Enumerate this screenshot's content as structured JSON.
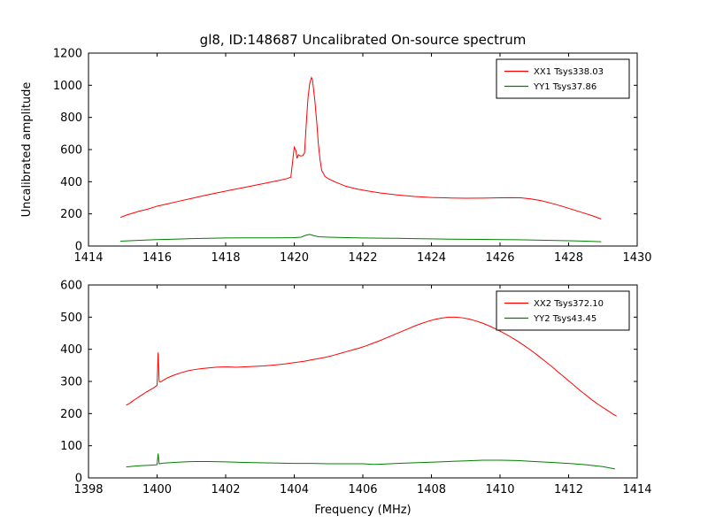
{
  "figure": {
    "background": "#ffffff",
    "frame_color": "#000000"
  },
  "chart_data": [
    {
      "type": "line",
      "title": "gl8, ID:148687 Uncalibrated On-source spectrum",
      "xlabel": "",
      "ylabel": "Uncalibrated amplitude",
      "xlim": [
        1414,
        1430
      ],
      "ylim": [
        0,
        1200
      ],
      "xticks": [
        1414,
        1416,
        1418,
        1420,
        1422,
        1424,
        1426,
        1428,
        1430
      ],
      "yticks": [
        0,
        200,
        400,
        600,
        800,
        1000,
        1200
      ],
      "grid": false,
      "legend_position": "upper right",
      "series": [
        {
          "name": "XX1 Tsys338.03",
          "color": "#ff0000",
          "points": [
            [
              1414.93,
              178
            ],
            [
              1415.1,
              192
            ],
            [
              1415.3,
              205
            ],
            [
              1415.5,
              218
            ],
            [
              1415.7,
              228
            ],
            [
              1416.0,
              248
            ],
            [
              1416.3,
              262
            ],
            [
              1416.6,
              277
            ],
            [
              1417.0,
              296
            ],
            [
              1417.4,
              315
            ],
            [
              1417.8,
              333
            ],
            [
              1418.2,
              350
            ],
            [
              1418.6,
              367
            ],
            [
              1419.0,
              384
            ],
            [
              1419.3,
              397
            ],
            [
              1419.6,
              410
            ],
            [
              1419.8,
              420
            ],
            [
              1419.85,
              425
            ],
            [
              1419.9,
              428
            ],
            [
              1419.95,
              520
            ],
            [
              1420.0,
              615
            ],
            [
              1420.05,
              592
            ],
            [
              1420.08,
              545
            ],
            [
              1420.12,
              568
            ],
            [
              1420.18,
              560
            ],
            [
              1420.25,
              562
            ],
            [
              1420.3,
              580
            ],
            [
              1420.35,
              760
            ],
            [
              1420.4,
              920
            ],
            [
              1420.45,
              1010
            ],
            [
              1420.5,
              1048
            ],
            [
              1420.53,
              1035
            ],
            [
              1420.56,
              980
            ],
            [
              1420.6,
              905
            ],
            [
              1420.63,
              830
            ],
            [
              1420.66,
              760
            ],
            [
              1420.7,
              640
            ],
            [
              1420.75,
              540
            ],
            [
              1420.8,
              470
            ],
            [
              1420.9,
              432
            ],
            [
              1421.0,
              418
            ],
            [
              1421.2,
              398
            ],
            [
              1421.5,
              372
            ],
            [
              1421.8,
              356
            ],
            [
              1422.1,
              344
            ],
            [
              1422.5,
              330
            ],
            [
              1423.0,
              318
            ],
            [
              1423.5,
              308
            ],
            [
              1424.0,
              302
            ],
            [
              1424.5,
              299
            ],
            [
              1425.0,
              297
            ],
            [
              1425.5,
              298
            ],
            [
              1426.0,
              300
            ],
            [
              1426.3,
              301
            ],
            [
              1426.6,
              300
            ],
            [
              1426.9,
              293
            ],
            [
              1427.2,
              282
            ],
            [
              1427.5,
              266
            ],
            [
              1427.8,
              248
            ],
            [
              1428.1,
              228
            ],
            [
              1428.4,
              208
            ],
            [
              1428.7,
              188
            ],
            [
              1428.95,
              168
            ]
          ]
        },
        {
          "name": "YY1 Tsys37.86",
          "color": "#008000",
          "points": [
            [
              1414.93,
              30
            ],
            [
              1415.5,
              36
            ],
            [
              1416.0,
              40
            ],
            [
              1416.5,
              43
            ],
            [
              1417.0,
              46
            ],
            [
              1417.5,
              48
            ],
            [
              1418.0,
              50
            ],
            [
              1418.5,
              51
            ],
            [
              1419.0,
              51
            ],
            [
              1419.5,
              51
            ],
            [
              1420.0,
              52
            ],
            [
              1420.2,
              55
            ],
            [
              1420.35,
              68
            ],
            [
              1420.45,
              72
            ],
            [
              1420.55,
              66
            ],
            [
              1420.7,
              58
            ],
            [
              1421.0,
              55
            ],
            [
              1421.5,
              52
            ],
            [
              1422.0,
              50
            ],
            [
              1422.5,
              49
            ],
            [
              1423.0,
              48
            ],
            [
              1423.5,
              46
            ],
            [
              1424.0,
              45
            ],
            [
              1424.5,
              43
            ],
            [
              1425.0,
              42
            ],
            [
              1425.5,
              41
            ],
            [
              1426.0,
              40
            ],
            [
              1426.5,
              39
            ],
            [
              1427.0,
              37
            ],
            [
              1427.5,
              35
            ],
            [
              1428.0,
              33
            ],
            [
              1428.5,
              30
            ],
            [
              1428.95,
              27
            ]
          ]
        }
      ]
    },
    {
      "type": "line",
      "title": "",
      "xlabel": "Frequency (MHz)",
      "ylabel": "",
      "xlim": [
        1398,
        1414
      ],
      "ylim": [
        0,
        600
      ],
      "xticks": [
        1398,
        1400,
        1402,
        1404,
        1406,
        1408,
        1410,
        1412,
        1414
      ],
      "yticks": [
        0,
        100,
        200,
        300,
        400,
        500,
        600
      ],
      "grid": false,
      "legend_position": "upper right",
      "series": [
        {
          "name": "XX2 Tsys372.10",
          "color": "#ff0000",
          "points": [
            [
              1399.1,
              226
            ],
            [
              1399.2,
              232
            ],
            [
              1399.3,
              240
            ],
            [
              1399.4,
              247
            ],
            [
              1399.5,
              254
            ],
            [
              1399.6,
              261
            ],
            [
              1399.7,
              268
            ],
            [
              1399.8,
              274
            ],
            [
              1399.9,
              280
            ],
            [
              1399.95,
              284
            ],
            [
              1400.0,
              288
            ],
            [
              1400.03,
              390
            ],
            [
              1400.06,
              300
            ],
            [
              1400.1,
              298
            ],
            [
              1400.2,
              305
            ],
            [
              1400.3,
              311
            ],
            [
              1400.5,
              320
            ],
            [
              1400.7,
              327
            ],
            [
              1400.9,
              333
            ],
            [
              1401.1,
              337
            ],
            [
              1401.3,
              340
            ],
            [
              1401.5,
              342
            ],
            [
              1401.7,
              344
            ],
            [
              1401.9,
              345
            ],
            [
              1402.1,
              345
            ],
            [
              1402.3,
              344
            ],
            [
              1402.5,
              345
            ],
            [
              1402.7,
              346
            ],
            [
              1402.9,
              347
            ],
            [
              1403.1,
              348
            ],
            [
              1403.3,
              350
            ],
            [
              1403.5,
              352
            ],
            [
              1403.7,
              354
            ],
            [
              1403.9,
              357
            ],
            [
              1404.1,
              360
            ],
            [
              1404.3,
              363
            ],
            [
              1404.5,
              367
            ],
            [
              1404.7,
              371
            ],
            [
              1404.9,
              375
            ],
            [
              1405.1,
              380
            ],
            [
              1405.3,
              386
            ],
            [
              1405.5,
              392
            ],
            [
              1405.7,
              398
            ],
            [
              1405.9,
              404
            ],
            [
              1406.1,
              411
            ],
            [
              1406.3,
              419
            ],
            [
              1406.5,
              427
            ],
            [
              1406.7,
              436
            ],
            [
              1406.9,
              445
            ],
            [
              1407.1,
              454
            ],
            [
              1407.3,
              463
            ],
            [
              1407.5,
              472
            ],
            [
              1407.7,
              480
            ],
            [
              1407.9,
              487
            ],
            [
              1408.1,
              493
            ],
            [
              1408.3,
              497
            ],
            [
              1408.5,
              500
            ],
            [
              1408.7,
              500
            ],
            [
              1408.9,
              498
            ],
            [
              1409.1,
              494
            ],
            [
              1409.3,
              488
            ],
            [
              1409.5,
              481
            ],
            [
              1409.7,
              472
            ],
            [
              1409.9,
              462
            ],
            [
              1410.1,
              451
            ],
            [
              1410.3,
              439
            ],
            [
              1410.5,
              426
            ],
            [
              1410.7,
              412
            ],
            [
              1410.9,
              397
            ],
            [
              1411.1,
              381
            ],
            [
              1411.3,
              364
            ],
            [
              1411.5,
              347
            ],
            [
              1411.7,
              329
            ],
            [
              1411.9,
              311
            ],
            [
              1412.1,
              293
            ],
            [
              1412.3,
              275
            ],
            [
              1412.5,
              258
            ],
            [
              1412.7,
              241
            ],
            [
              1412.9,
              226
            ],
            [
              1413.1,
              212
            ],
            [
              1413.3,
              198
            ],
            [
              1413.4,
              192
            ]
          ]
        },
        {
          "name": "YY2 Tsys43.45",
          "color": "#008000",
          "points": [
            [
              1399.1,
              34
            ],
            [
              1399.3,
              36
            ],
            [
              1399.5,
              38
            ],
            [
              1399.7,
              39
            ],
            [
              1399.9,
              40
            ],
            [
              1400.0,
              41
            ],
            [
              1400.03,
              76
            ],
            [
              1400.06,
              44
            ],
            [
              1400.2,
              46
            ],
            [
              1400.5,
              48
            ],
            [
              1400.8,
              50
            ],
            [
              1401.1,
              51
            ],
            [
              1401.5,
              51
            ],
            [
              1402.0,
              50
            ],
            [
              1402.5,
              48
            ],
            [
              1403.0,
              47
            ],
            [
              1403.5,
              46
            ],
            [
              1404.0,
              45
            ],
            [
              1404.5,
              45
            ],
            [
              1405.0,
              44
            ],
            [
              1405.5,
              44
            ],
            [
              1406.0,
              44
            ],
            [
              1406.3,
              42
            ],
            [
              1406.6,
              43
            ],
            [
              1407.0,
              45
            ],
            [
              1407.5,
              47
            ],
            [
              1408.0,
              49
            ],
            [
              1408.5,
              51
            ],
            [
              1409.0,
              53
            ],
            [
              1409.5,
              55
            ],
            [
              1410.0,
              55
            ],
            [
              1410.5,
              54
            ],
            [
              1411.0,
              51
            ],
            [
              1411.5,
              48
            ],
            [
              1412.0,
              45
            ],
            [
              1412.5,
              41
            ],
            [
              1413.0,
              35
            ],
            [
              1413.35,
              28
            ]
          ]
        }
      ]
    }
  ]
}
